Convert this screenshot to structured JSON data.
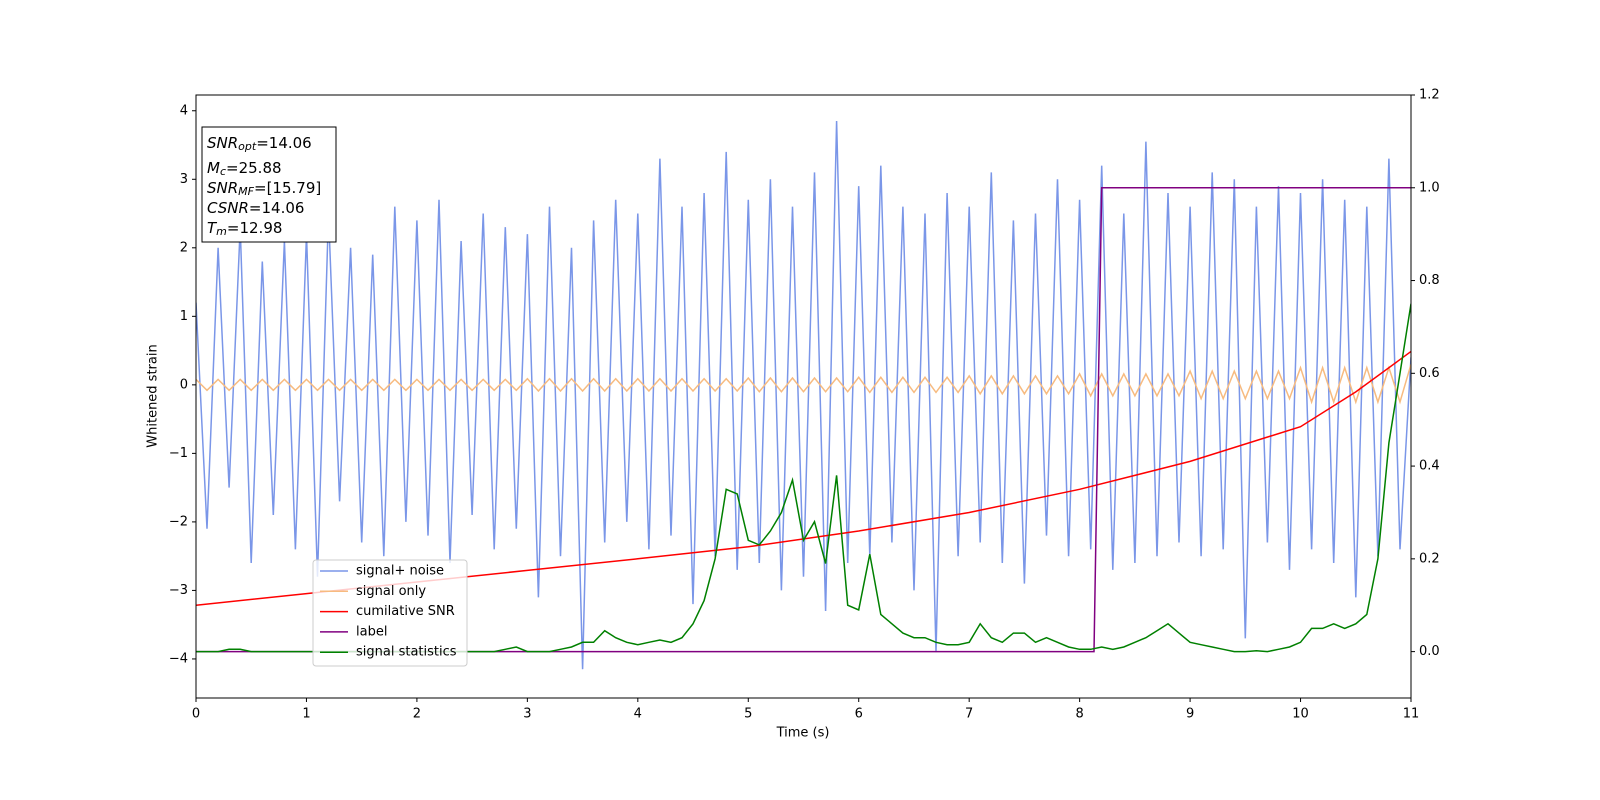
{
  "chart_data": {
    "type": "line",
    "xlabel": "Time (s)",
    "ylabel": "Whitened strain",
    "xlim": [
      0,
      11
    ],
    "ylim": [
      -4.57,
      4.23
    ],
    "y2lim": [
      -0.1,
      1.2
    ],
    "xticks": [
      0,
      1,
      2,
      3,
      4,
      5,
      6,
      7,
      8,
      9,
      10,
      11
    ],
    "yticks": [
      {
        "value": -4,
        "label": "−4"
      },
      {
        "value": -3,
        "label": "−3"
      },
      {
        "value": -2,
        "label": "−2"
      },
      {
        "value": -1,
        "label": "−1"
      },
      0,
      1,
      2,
      3,
      4
    ],
    "y2ticks": [
      {
        "value": 0,
        "label": "0.0"
      },
      {
        "value": 0.2,
        "label": "0.2"
      },
      {
        "value": 0.4,
        "label": "0.4"
      },
      {
        "value": 0.6,
        "label": "0.6"
      },
      {
        "value": 0.8,
        "label": "0.8"
      },
      {
        "value": 1.0,
        "label": "1.0"
      },
      {
        "value": 1.2,
        "label": "1.2"
      }
    ],
    "annotations": [
      {
        "name": "SNR",
        "sub": "opt",
        "text": "=14.06"
      },
      {
        "name": "M",
        "sub": "c",
        "text": "=25.88"
      },
      {
        "name": "SNR",
        "sub": "MF",
        "text": "=[15.79]"
      },
      {
        "name": "CSNR",
        "text": "=14.06"
      },
      {
        "name": "T",
        "sub": "m",
        "text": "=12.98"
      }
    ],
    "x": [
      0,
      0.1,
      0.2,
      0.3,
      0.4,
      0.5,
      0.6,
      0.7,
      0.8,
      0.9,
      1,
      1.1,
      1.2,
      1.3,
      1.4,
      1.5,
      1.6,
      1.7,
      1.8,
      1.9,
      2,
      2.1,
      2.2,
      2.3,
      2.4,
      2.5,
      2.6,
      2.7,
      2.8,
      2.9,
      3,
      3.1,
      3.2,
      3.3,
      3.4,
      3.5,
      3.6,
      3.7,
      3.8,
      3.9,
      4,
      4.1,
      4.2,
      4.3,
      4.4,
      4.5,
      4.6,
      4.7,
      4.8,
      4.9,
      5,
      5.1,
      5.2,
      5.3,
      5.4,
      5.5,
      5.6,
      5.7,
      5.8,
      5.9,
      6,
      6.1,
      6.2,
      6.3,
      6.4,
      6.5,
      6.6,
      6.7,
      6.8,
      6.9,
      7,
      7.1,
      7.2,
      7.3,
      7.4,
      7.5,
      7.6,
      7.7,
      7.8,
      7.9,
      8,
      8.1,
      8.2,
      8.3,
      8.4,
      8.5,
      8.6,
      8.7,
      8.8,
      8.9,
      9,
      9.1,
      9.2,
      9.3,
      9.4,
      9.5,
      9.6,
      9.7,
      9.8,
      9.9,
      10,
      10.1,
      10.2,
      10.3,
      10.4,
      10.5,
      10.6,
      10.7,
      10.8,
      10.9,
      11
    ],
    "series": [
      {
        "name": "signal+ noise",
        "color": "#7a96e8",
        "axis": "y",
        "values": [
          1.2,
          -2.1,
          2.0,
          -1.5,
          2.3,
          -2.6,
          1.8,
          -1.9,
          2.1,
          -2.4,
          2.2,
          -2.8,
          2.5,
          -1.7,
          2.0,
          -2.3,
          1.9,
          -2.5,
          2.6,
          -2.0,
          2.4,
          -2.2,
          2.7,
          -2.6,
          2.1,
          -1.9,
          2.5,
          -2.4,
          2.3,
          -2.1,
          2.2,
          -3.1,
          2.6,
          -2.5,
          2.0,
          -4.15,
          2.4,
          -2.3,
          2.7,
          -2.0,
          2.5,
          -2.4,
          3.3,
          -2.2,
          2.6,
          -3.2,
          2.8,
          -2.5,
          3.4,
          -2.7,
          2.7,
          -2.6,
          3.0,
          -3.0,
          2.6,
          -2.8,
          3.1,
          -3.3,
          3.85,
          -2.6,
          2.9,
          -2.5,
          3.2,
          -2.3,
          2.6,
          -3.0,
          2.5,
          -3.9,
          2.8,
          -2.5,
          2.6,
          -2.3,
          3.1,
          -2.6,
          2.4,
          -2.9,
          2.5,
          -2.2,
          3.0,
          -2.5,
          2.7,
          -2.4,
          3.2,
          -2.7,
          2.5,
          -2.6,
          3.55,
          -2.5,
          2.8,
          -2.3,
          2.6,
          -2.5,
          3.1,
          -2.4,
          3.0,
          -3.7,
          2.6,
          -2.3,
          2.9,
          -2.7,
          2.8,
          -2.4,
          3.0,
          -2.6,
          2.7,
          -3.1,
          2.6,
          -2.5,
          3.3,
          -2.4,
          0.4
        ]
      },
      {
        "name": "signal only",
        "color": "#f7bb80",
        "axis": "y",
        "values": [
          0.08,
          -0.08,
          0.08,
          -0.08,
          0.08,
          -0.08,
          0.08,
          -0.08,
          0.08,
          -0.08,
          0.08,
          -0.08,
          0.08,
          -0.08,
          0.08,
          -0.08,
          0.08,
          -0.08,
          0.08,
          -0.08,
          0.08,
          -0.08,
          0.08,
          -0.08,
          0.08,
          -0.08,
          0.08,
          -0.08,
          0.08,
          -0.08,
          0.09,
          -0.09,
          0.09,
          -0.09,
          0.09,
          -0.09,
          0.09,
          -0.09,
          0.09,
          -0.09,
          0.09,
          -0.09,
          0.09,
          -0.09,
          0.09,
          -0.09,
          0.09,
          -0.09,
          0.09,
          -0.09,
          0.1,
          -0.1,
          0.1,
          -0.1,
          0.1,
          -0.1,
          0.1,
          -0.1,
          0.1,
          -0.1,
          0.11,
          -0.11,
          0.11,
          -0.11,
          0.11,
          -0.11,
          0.11,
          -0.11,
          0.11,
          -0.11,
          0.13,
          -0.13,
          0.13,
          -0.13,
          0.13,
          -0.13,
          0.13,
          -0.13,
          0.13,
          -0.13,
          0.16,
          -0.16,
          0.16,
          -0.16,
          0.16,
          -0.16,
          0.16,
          -0.16,
          0.16,
          -0.16,
          0.2,
          -0.2,
          0.2,
          -0.2,
          0.2,
          -0.2,
          0.2,
          -0.2,
          0.2,
          -0.2,
          0.25,
          -0.25,
          0.25,
          -0.25,
          0.25,
          -0.25,
          0.25,
          -0.25,
          0.25,
          -0.25,
          0.3
        ]
      },
      {
        "name": "cumilative SNR",
        "color": "#ff0000",
        "axis": "y2",
        "x": [
          0,
          1,
          2,
          3,
          4,
          5,
          6,
          7,
          8,
          9,
          10,
          10.5,
          11
        ],
        "values": [
          0.1,
          0.125,
          0.15,
          0.175,
          0.2,
          0.226,
          0.26,
          0.3,
          0.35,
          0.41,
          0.485,
          0.56,
          0.647
        ]
      },
      {
        "name": "label",
        "color": "#800080",
        "axis": "y2",
        "x": [
          0,
          8.13,
          8.2,
          11
        ],
        "values": [
          0,
          0,
          1,
          1
        ]
      },
      {
        "name": "signal statistics",
        "color": "#008000",
        "axis": "y2",
        "values": [
          0,
          0,
          0,
          0.005,
          0.005,
          0,
          0,
          0,
          0,
          0,
          0,
          0,
          0,
          0,
          0,
          0,
          0,
          0,
          0,
          0,
          0,
          0,
          0,
          0,
          0,
          0,
          0,
          0,
          0.005,
          0.01,
          0,
          0,
          0,
          0.005,
          0.01,
          0.02,
          0.02,
          0.045,
          0.03,
          0.02,
          0.015,
          0.02,
          0.025,
          0.02,
          0.03,
          0.06,
          0.11,
          0.2,
          0.35,
          0.34,
          0.24,
          0.23,
          0.26,
          0.3,
          0.37,
          0.24,
          0.28,
          0.19,
          0.38,
          0.1,
          0.09,
          0.21,
          0.08,
          0.06,
          0.04,
          0.03,
          0.03,
          0.02,
          0.015,
          0.015,
          0.02,
          0.06,
          0.03,
          0.02,
          0.04,
          0.04,
          0.02,
          0.03,
          0.02,
          0.01,
          0.005,
          0.005,
          0.01,
          0.005,
          0.01,
          0.02,
          0.03,
          0.045,
          0.06,
          0.04,
          0.02,
          0.015,
          0.01,
          0.005,
          0,
          0,
          0.002,
          0,
          0.005,
          0.01,
          0.02,
          0.05,
          0.05,
          0.06,
          0.05,
          0.06,
          0.08,
          0.2,
          0.45,
          0.6,
          0.75
        ]
      }
    ]
  }
}
